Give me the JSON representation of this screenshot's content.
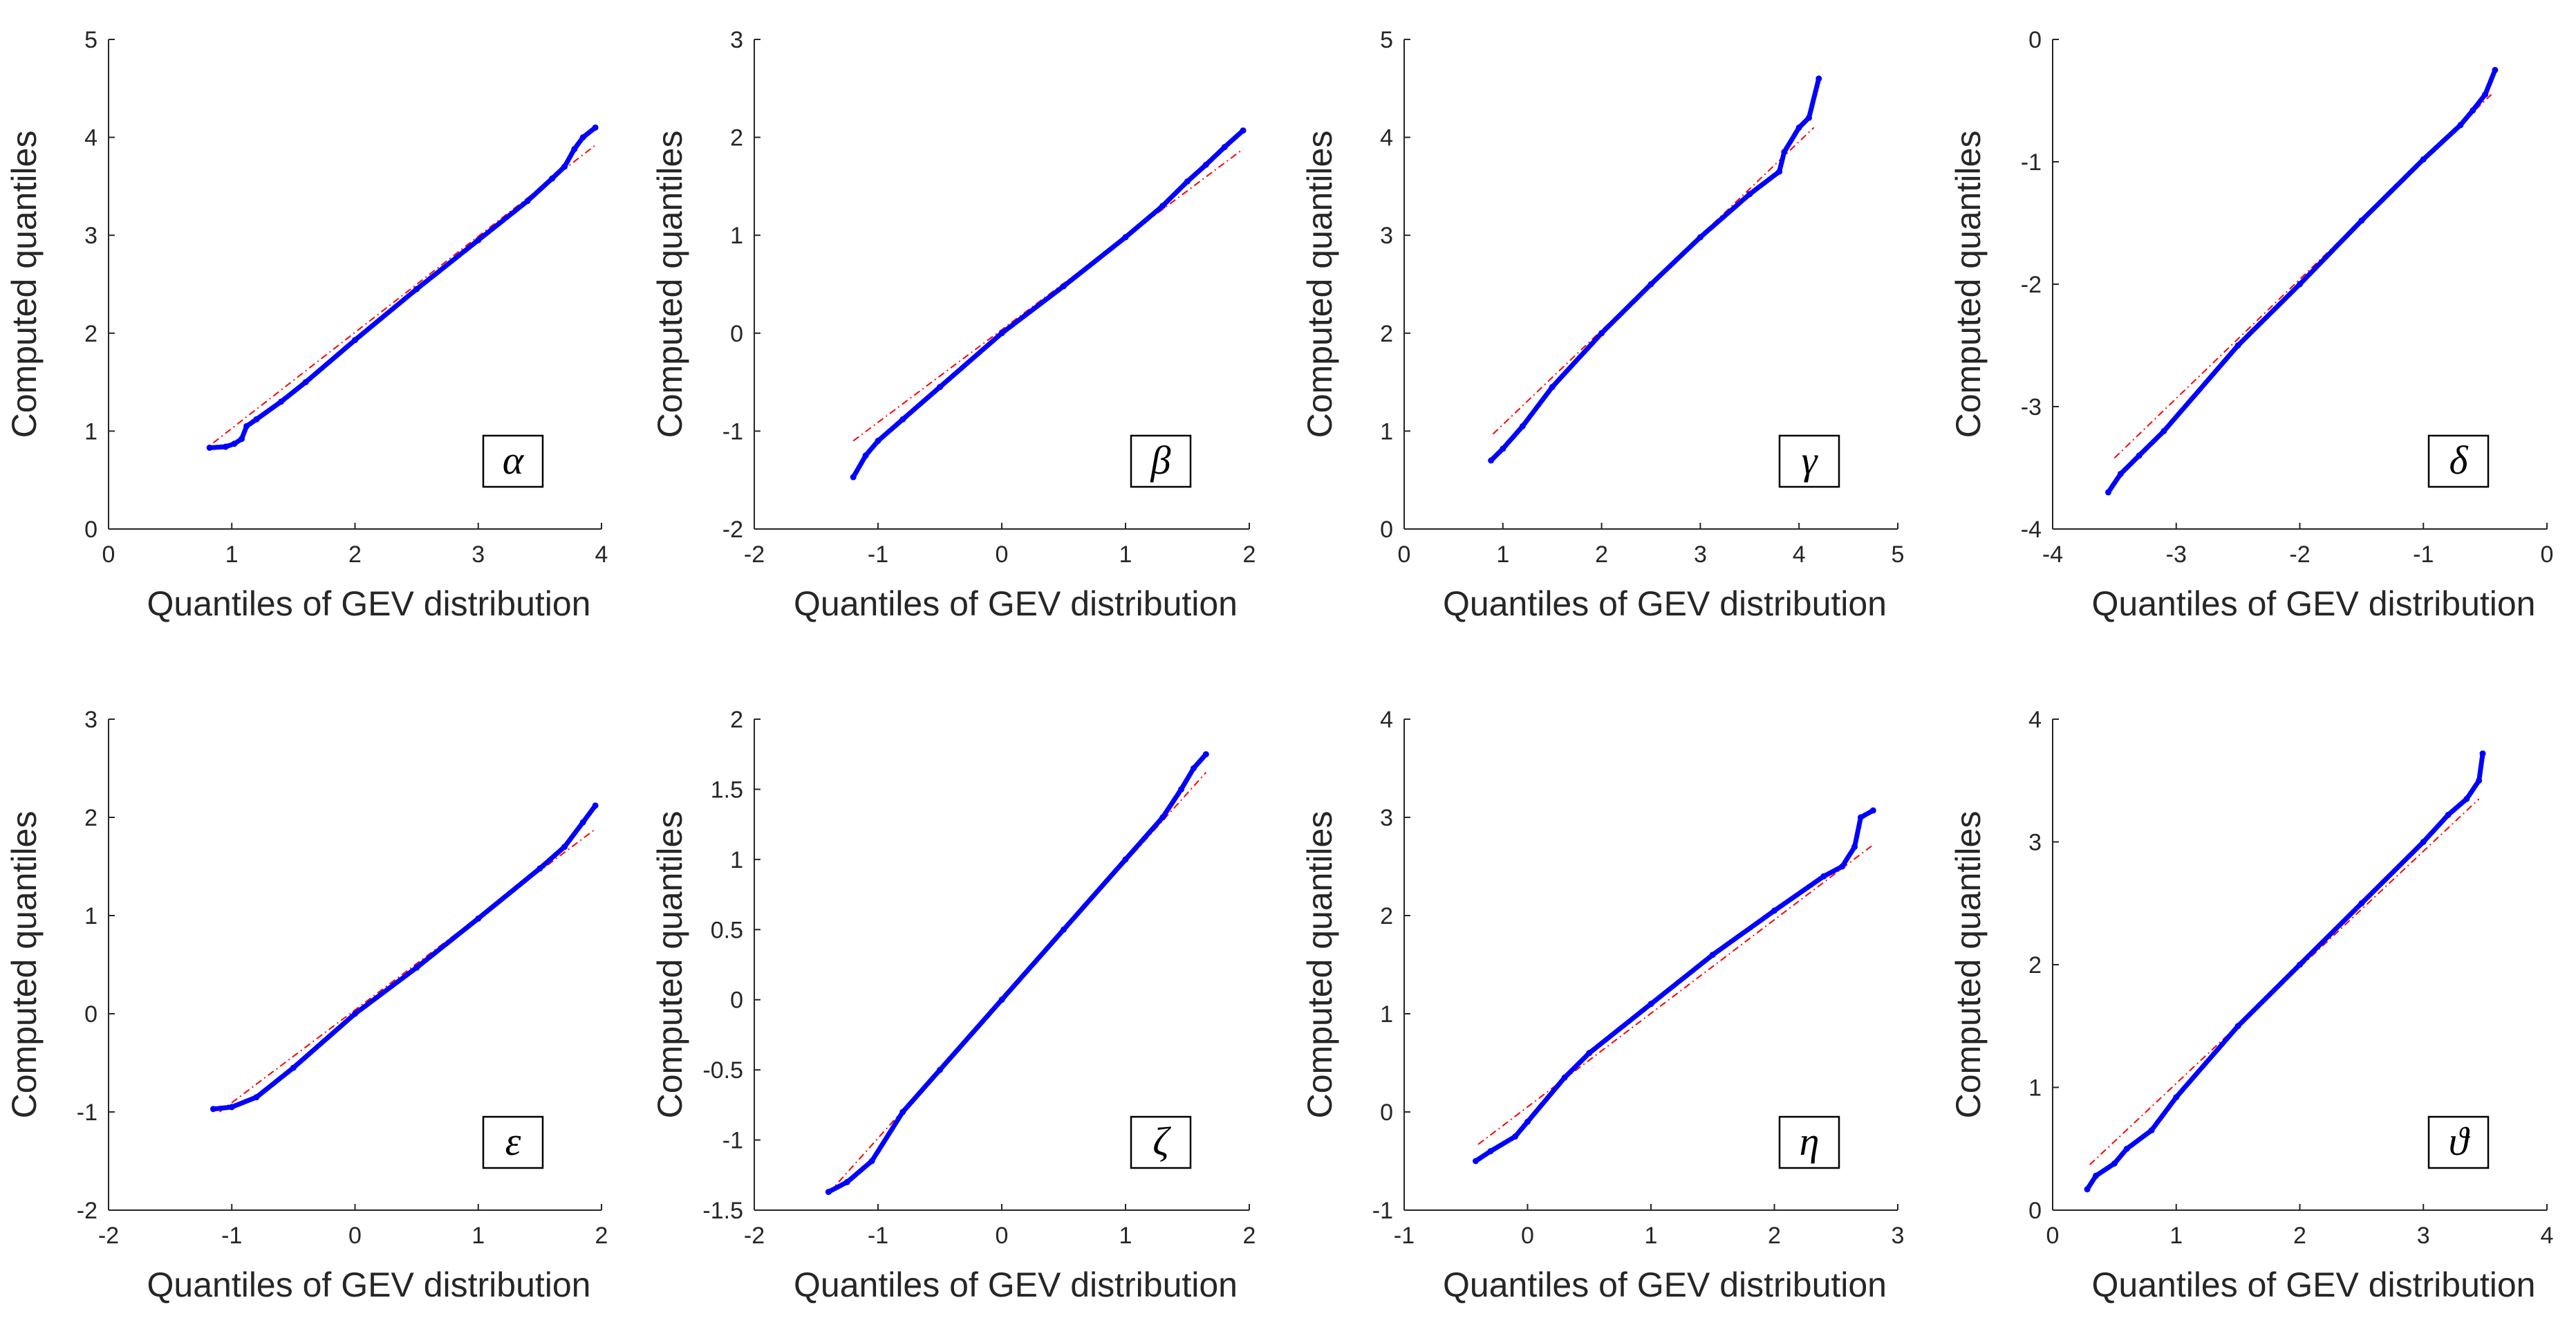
{
  "chart_data": [
    {
      "type": "scatter",
      "panel": "α",
      "xlabel": "Quantiles of GEV distribution",
      "ylabel": "Computed quantiles",
      "xlim": [
        0,
        4
      ],
      "ylim": [
        0,
        5
      ],
      "xticks": [
        "0",
        "1",
        "2",
        "3",
        "4"
      ],
      "yticks": [
        "0",
        "1",
        "2",
        "3",
        "4",
        "5"
      ],
      "points_color": "#0000ff",
      "line_color": "#ff0000",
      "reference_line": [
        [
          0.85,
          0.88
        ],
        [
          3.95,
          3.92
        ]
      ],
      "quantiles": [
        [
          0.82,
          0.83
        ],
        [
          0.95,
          0.84
        ],
        [
          1.02,
          0.87
        ],
        [
          1.08,
          0.92
        ],
        [
          1.12,
          1.05
        ],
        [
          1.2,
          1.12
        ],
        [
          1.4,
          1.3
        ],
        [
          1.6,
          1.5
        ],
        [
          2.0,
          1.93
        ],
        [
          2.5,
          2.45
        ],
        [
          3.0,
          2.95
        ],
        [
          3.4,
          3.35
        ],
        [
          3.6,
          3.58
        ],
        [
          3.7,
          3.7
        ],
        [
          3.78,
          3.88
        ],
        [
          3.85,
          4.0
        ],
        [
          3.95,
          4.1
        ]
      ]
    },
    {
      "type": "scatter",
      "panel": "β",
      "xlabel": "Quantiles of GEV distribution",
      "ylabel": "Computed quantiles",
      "xlim": [
        -2,
        2
      ],
      "ylim": [
        -2,
        3
      ],
      "xticks": [
        "-2",
        "-1",
        "0",
        "1",
        "2"
      ],
      "yticks": [
        "-2",
        "-1",
        "0",
        "1",
        "2",
        "3"
      ],
      "points_color": "#0000ff",
      "line_color": "#ff0000",
      "reference_line": [
        [
          -1.2,
          -1.1
        ],
        [
          1.95,
          1.88
        ]
      ],
      "quantiles": [
        [
          -1.2,
          -1.47
        ],
        [
          -1.1,
          -1.25
        ],
        [
          -1.0,
          -1.1
        ],
        [
          -0.8,
          -0.88
        ],
        [
          -0.5,
          -0.55
        ],
        [
          0.0,
          0.0
        ],
        [
          0.5,
          0.48
        ],
        [
          1.0,
          0.98
        ],
        [
          1.3,
          1.3
        ],
        [
          1.5,
          1.55
        ],
        [
          1.65,
          1.72
        ],
        [
          1.8,
          1.9
        ],
        [
          1.95,
          2.07
        ]
      ]
    },
    {
      "type": "scatter",
      "panel": "γ",
      "xlabel": "Quantiles of GEV distribution",
      "ylabel": "Computed quantiles",
      "xlim": [
        0,
        5
      ],
      "ylim": [
        0,
        5
      ],
      "xticks": [
        "0",
        "1",
        "2",
        "3",
        "4",
        "5"
      ],
      "yticks": [
        "0",
        "1",
        "2",
        "3",
        "4",
        "5"
      ],
      "points_color": "#0000ff",
      "line_color": "#ff0000",
      "reference_line": [
        [
          0.9,
          0.97
        ],
        [
          4.15,
          4.1
        ]
      ],
      "quantiles": [
        [
          0.88,
          0.7
        ],
        [
          1.0,
          0.82
        ],
        [
          1.2,
          1.05
        ],
        [
          1.5,
          1.45
        ],
        [
          2.0,
          2.0
        ],
        [
          2.5,
          2.5
        ],
        [
          3.0,
          2.98
        ],
        [
          3.5,
          3.42
        ],
        [
          3.8,
          3.65
        ],
        [
          3.85,
          3.85
        ],
        [
          4.0,
          4.1
        ],
        [
          4.1,
          4.2
        ],
        [
          4.2,
          4.6
        ]
      ]
    },
    {
      "type": "scatter",
      "panel": "δ",
      "xlabel": "Quantiles of GEV distribution",
      "ylabel": "Computed quantiles",
      "xlim": [
        -4,
        0
      ],
      "ylim": [
        -4,
        0
      ],
      "xticks": [
        "-4",
        "-3",
        "-2",
        "-1",
        "0"
      ],
      "yticks": [
        "-4",
        "-3",
        "-2",
        "-1",
        "0"
      ],
      "points_color": "#0000ff",
      "line_color": "#ff0000",
      "reference_line": [
        [
          -3.5,
          -3.42
        ],
        [
          -0.45,
          -0.45
        ]
      ],
      "quantiles": [
        [
          -3.55,
          -3.7
        ],
        [
          -3.45,
          -3.55
        ],
        [
          -3.3,
          -3.4
        ],
        [
          -3.1,
          -3.2
        ],
        [
          -2.5,
          -2.5
        ],
        [
          -2.0,
          -2.0
        ],
        [
          -1.5,
          -1.48
        ],
        [
          -1.0,
          -0.98
        ],
        [
          -0.7,
          -0.7
        ],
        [
          -0.6,
          -0.58
        ],
        [
          -0.5,
          -0.45
        ],
        [
          -0.42,
          -0.25
        ]
      ]
    },
    {
      "type": "scatter",
      "panel": "ε",
      "xlabel": "Quantiles of GEV distribution",
      "ylabel": "Computed quantiles",
      "xlim": [
        -2,
        2
      ],
      "ylim": [
        -2,
        3
      ],
      "xticks": [
        "-2",
        "-1",
        "0",
        "1",
        "2"
      ],
      "yticks": [
        "-2",
        "-1",
        "0",
        "1",
        "2",
        "3"
      ],
      "points_color": "#0000ff",
      "line_color": "#ff0000",
      "reference_line": [
        [
          -1.1,
          -1.0
        ],
        [
          1.95,
          1.88
        ]
      ],
      "quantiles": [
        [
          -1.15,
          -0.97
        ],
        [
          -1.0,
          -0.95
        ],
        [
          -0.8,
          -0.85
        ],
        [
          -0.5,
          -0.55
        ],
        [
          0.0,
          0.0
        ],
        [
          0.5,
          0.47
        ],
        [
          1.0,
          0.97
        ],
        [
          1.5,
          1.48
        ],
        [
          1.7,
          1.7
        ],
        [
          1.85,
          1.95
        ],
        [
          1.95,
          2.12
        ]
      ]
    },
    {
      "type": "scatter",
      "panel": "ζ",
      "xlabel": "Quantiles of GEV distribution",
      "ylabel": "Computed quantiles",
      "xlim": [
        -2,
        2
      ],
      "ylim": [
        -1.5,
        2
      ],
      "xticks": [
        "-2",
        "-1",
        "0",
        "1",
        "2"
      ],
      "yticks": [
        "-1.5",
        "-1",
        "-0.5",
        "0",
        "0.5",
        "1",
        "1.5",
        "2"
      ],
      "points_color": "#0000ff",
      "line_color": "#ff0000",
      "reference_line": [
        [
          -1.4,
          -1.38
        ],
        [
          1.65,
          1.62
        ]
      ],
      "quantiles": [
        [
          -1.4,
          -1.37
        ],
        [
          -1.25,
          -1.3
        ],
        [
          -1.05,
          -1.15
        ],
        [
          -0.8,
          -0.8
        ],
        [
          -0.5,
          -0.5
        ],
        [
          0.0,
          0.0
        ],
        [
          0.5,
          0.5
        ],
        [
          1.0,
          1.0
        ],
        [
          1.3,
          1.3
        ],
        [
          1.45,
          1.5
        ],
        [
          1.55,
          1.65
        ],
        [
          1.65,
          1.75
        ]
      ]
    },
    {
      "type": "scatter",
      "panel": "η",
      "xlabel": "Quantiles of GEV distribution",
      "ylabel": "Computed quantiles",
      "xlim": [
        -1,
        3
      ],
      "ylim": [
        -1,
        4
      ],
      "xticks": [
        "-1",
        "0",
        "1",
        "2",
        "3"
      ],
      "yticks": [
        "-1",
        "0",
        "1",
        "2",
        "3",
        "4"
      ],
      "points_color": "#0000ff",
      "line_color": "#ff0000",
      "reference_line": [
        [
          -0.4,
          -0.33
        ],
        [
          2.8,
          2.72
        ]
      ],
      "quantiles": [
        [
          -0.42,
          -0.5
        ],
        [
          -0.3,
          -0.4
        ],
        [
          -0.1,
          -0.25
        ],
        [
          0.0,
          -0.1
        ],
        [
          0.3,
          0.35
        ],
        [
          0.5,
          0.6
        ],
        [
          1.0,
          1.1
        ],
        [
          1.5,
          1.6
        ],
        [
          2.0,
          2.05
        ],
        [
          2.4,
          2.4
        ],
        [
          2.55,
          2.5
        ],
        [
          2.65,
          2.7
        ],
        [
          2.7,
          3.0
        ],
        [
          2.8,
          3.07
        ]
      ]
    },
    {
      "type": "scatter",
      "panel": "ϑ",
      "xlabel": "Quantiles of GEV distribution",
      "ylabel": "Computed quantiles",
      "xlim": [
        0,
        4
      ],
      "ylim": [
        0,
        4
      ],
      "xticks": [
        "0",
        "1",
        "2",
        "3",
        "4"
      ],
      "yticks": [
        "0",
        "1",
        "2",
        "3",
        "4"
      ],
      "points_color": "#0000ff",
      "line_color": "#ff0000",
      "reference_line": [
        [
          0.3,
          0.37
        ],
        [
          3.45,
          3.35
        ]
      ],
      "quantiles": [
        [
          0.28,
          0.17
        ],
        [
          0.35,
          0.28
        ],
        [
          0.5,
          0.38
        ],
        [
          0.6,
          0.5
        ],
        [
          0.8,
          0.65
        ],
        [
          1.0,
          0.92
        ],
        [
          1.5,
          1.5
        ],
        [
          2.0,
          2.0
        ],
        [
          2.5,
          2.5
        ],
        [
          3.0,
          3.0
        ],
        [
          3.2,
          3.22
        ],
        [
          3.35,
          3.35
        ],
        [
          3.45,
          3.5
        ],
        [
          3.48,
          3.72
        ]
      ]
    }
  ]
}
